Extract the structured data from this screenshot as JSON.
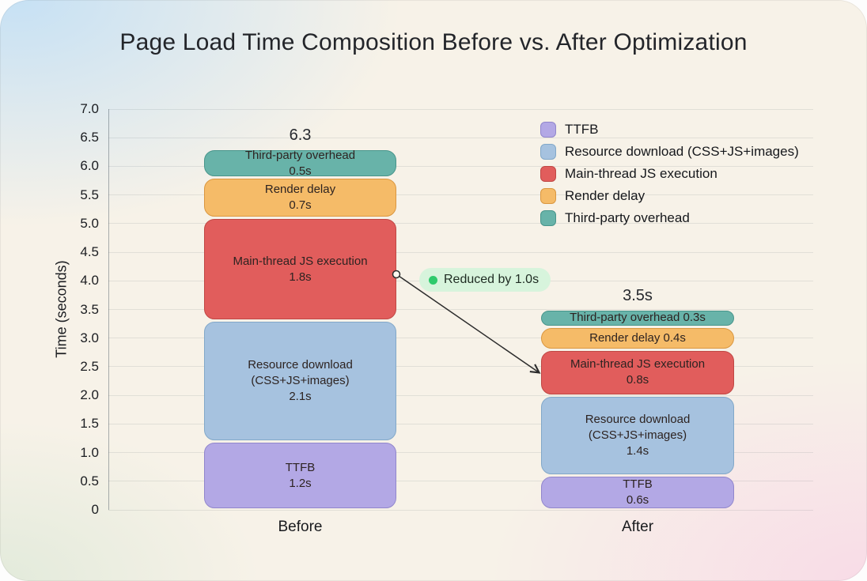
{
  "chart_data": {
    "type": "bar",
    "stacked": true,
    "title": "Page Load Time Composition Before vs. After Optimization",
    "ylabel": "Time (seconds)",
    "ylim": [
      0,
      7.0
    ],
    "yticks": [
      "0",
      "0.5",
      "1.0",
      "1.5",
      "2.0",
      "2.5",
      "3.0",
      "3.5",
      "4.0",
      "4.5",
      "5.0",
      "5.5",
      "6.0",
      "6.5",
      "7.0"
    ],
    "grid": true,
    "legend_position": "upper-right",
    "categories": [
      "Before",
      "After"
    ],
    "series": [
      {
        "name": "TTFB",
        "fill": "#b3a8e5",
        "border": "#9186cc",
        "values": [
          1.2,
          0.6
        ]
      },
      {
        "name": "Resource download (CSS+JS+images)",
        "fill": "#a6c2df",
        "border": "#82a8c9",
        "values": [
          2.1,
          1.4
        ]
      },
      {
        "name": "Main-thread JS execution",
        "fill": "#e15d5c",
        "border": "#c04744",
        "values": [
          1.8,
          0.8
        ]
      },
      {
        "name": "Render delay",
        "fill": "#f5bb68",
        "border": "#da9740",
        "values": [
          0.7,
          0.4
        ]
      },
      {
        "name": "Third-party overhead",
        "fill": "#68b3a9",
        "border": "#48958b",
        "values": [
          0.5,
          0.3
        ]
      }
    ],
    "totals": [
      6.3,
      3.5
    ],
    "total_labels": [
      "6.3",
      "3.5s"
    ],
    "annotation": {
      "text": "Reduced by 1.0s",
      "dot_color": "#2fca6c",
      "bg_color": "#d7f4dc",
      "from_segment": "Before / Main-thread JS execution",
      "to_segment": "After / Main-thread JS execution"
    }
  },
  "bars": [
    {
      "label": "Before",
      "total": "6.3",
      "segments": [
        {
          "series": "TTFB",
          "lines": [
            "TTFB",
            "1.2s"
          ]
        },
        {
          "series": "Resource download (CSS+JS+images)",
          "lines": [
            "Resource download",
            "(CSS+JS+images)",
            "2.1s"
          ]
        },
        {
          "series": "Main-thread JS execution",
          "lines": [
            "Main-thread JS execution",
            "1.8s"
          ]
        },
        {
          "series": "Render delay",
          "lines": [
            "Render delay",
            "0.7s"
          ]
        },
        {
          "series": "Third-party overhead",
          "lines": [
            "Third-party overhead",
            "0.5s"
          ]
        }
      ]
    },
    {
      "label": "After",
      "total": "3.5s",
      "segments": [
        {
          "series": "TTFB",
          "lines": [
            "TTFB",
            "0.6s"
          ]
        },
        {
          "series": "Resource download (CSS+JS+images)",
          "lines": [
            "Resource download",
            "(CSS+JS+images)",
            "1.4s"
          ]
        },
        {
          "series": "Main-thread JS execution",
          "lines": [
            "Main-thread JS execution",
            "0.8s"
          ]
        },
        {
          "series": "Render delay",
          "lines": [
            "Render delay 0.4s"
          ]
        },
        {
          "series": "Third-party overhead",
          "lines": [
            "Third-party overhead 0.3s"
          ]
        }
      ]
    }
  ]
}
